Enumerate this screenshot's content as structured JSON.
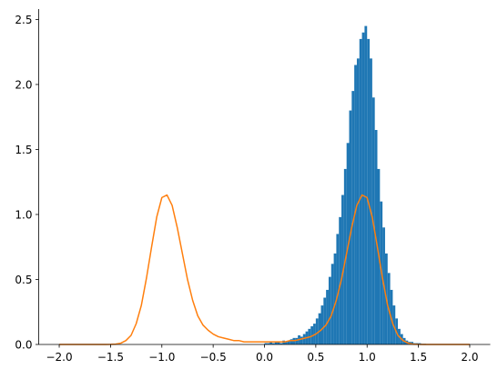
{
  "chart_data": {
    "type": "histogram",
    "xlim": [
      -2.2,
      2.2
    ],
    "ylim": [
      0,
      2.58
    ],
    "xticks": [
      {
        "value": -2,
        "label": "−2.0"
      },
      {
        "value": -1.5,
        "label": "−1.5"
      },
      {
        "value": -1,
        "label": "−1.0"
      },
      {
        "value": -0.5,
        "label": "−0.5"
      },
      {
        "value": 0,
        "label": "0.0"
      },
      {
        "value": 0.5,
        "label": "0.5"
      },
      {
        "value": 1,
        "label": "1.0"
      },
      {
        "value": 1.5,
        "label": "1.5"
      },
      {
        "value": 2,
        "label": "2.0"
      }
    ],
    "yticks": [
      {
        "value": 0,
        "label": "0.0"
      },
      {
        "value": 0.5,
        "label": "0.5"
      },
      {
        "value": 1,
        "label": "1.0"
      },
      {
        "value": 1.5,
        "label": "1.5"
      },
      {
        "value": 2,
        "label": "2.0"
      },
      {
        "value": 2.5,
        "label": "2.5"
      }
    ],
    "series": [
      {
        "type": "histogram",
        "color": "#1f77b4",
        "bins": [
          0,
          0.025,
          0.05,
          0.075,
          0.1,
          0.125,
          0.15,
          0.175,
          0.2,
          0.225,
          0.25,
          0.275,
          0.3,
          0.325,
          0.35,
          0.375,
          0.4,
          0.425,
          0.45,
          0.475,
          0.5,
          0.525,
          0.55,
          0.575,
          0.6,
          0.625,
          0.65,
          0.675,
          0.7,
          0.725,
          0.75,
          0.775,
          0.8,
          0.825,
          0.85,
          0.875,
          0.9,
          0.925,
          0.95,
          0.975,
          1,
          1.025,
          1.05,
          1.075,
          1.1,
          1.125,
          1.15,
          1.175,
          1.2,
          1.225,
          1.25,
          1.275,
          1.3,
          1.325,
          1.35,
          1.375,
          1.4,
          1.425,
          1.45,
          1.475,
          1.5,
          1.525,
          1.55,
          1.575,
          1.6
        ],
        "values": [
          0.01,
          0.01,
          0.02,
          0.01,
          0.02,
          0.02,
          0.01,
          0.03,
          0.02,
          0.03,
          0.04,
          0.05,
          0.05,
          0.07,
          0.06,
          0.08,
          0.1,
          0.12,
          0.14,
          0.16,
          0.2,
          0.24,
          0.3,
          0.36,
          0.42,
          0.52,
          0.62,
          0.7,
          0.85,
          0.98,
          1.15,
          1.35,
          1.55,
          1.8,
          1.95,
          2.15,
          2.2,
          2.35,
          2.4,
          2.45,
          2.35,
          2.2,
          1.9,
          1.65,
          1.35,
          1.1,
          0.9,
          0.7,
          0.55,
          0.42,
          0.3,
          0.2,
          0.12,
          0.08,
          0.05,
          0.03,
          0.02,
          0.02,
          0.01,
          0.01,
          0.01,
          0.005,
          0.005,
          0
        ]
      },
      {
        "type": "line",
        "color": "#ff7f0e",
        "x": [
          -2,
          -1.95,
          -1.9,
          -1.85,
          -1.8,
          -1.75,
          -1.7,
          -1.65,
          -1.6,
          -1.55,
          -1.5,
          -1.45,
          -1.4,
          -1.35,
          -1.3,
          -1.25,
          -1.2,
          -1.15,
          -1.1,
          -1.05,
          -1,
          -0.95,
          -0.9,
          -0.85,
          -0.8,
          -0.75,
          -0.7,
          -0.65,
          -0.6,
          -0.55,
          -0.5,
          -0.45,
          -0.4,
          -0.35,
          -0.3,
          -0.25,
          -0.2,
          -0.15,
          -0.1,
          -0.05,
          0,
          0.05,
          0.1,
          0.15,
          0.2,
          0.25,
          0.3,
          0.35,
          0.4,
          0.45,
          0.5,
          0.55,
          0.6,
          0.65,
          0.7,
          0.75,
          0.8,
          0.85,
          0.9,
          0.95,
          1,
          1.05,
          1.1,
          1.15,
          1.2,
          1.25,
          1.3,
          1.35,
          1.4,
          1.45,
          1.5,
          1.55,
          1.6,
          1.65,
          1.7,
          1.75,
          1.8,
          1.85,
          1.9,
          1.95,
          2
        ],
        "values": [
          0,
          0,
          0,
          0,
          0,
          0,
          0,
          0,
          0,
          0,
          0.001,
          0.003,
          0.01,
          0.03,
          0.07,
          0.16,
          0.3,
          0.51,
          0.75,
          0.98,
          1.13,
          1.15,
          1.07,
          0.9,
          0.7,
          0.5,
          0.34,
          0.22,
          0.15,
          0.11,
          0.08,
          0.06,
          0.05,
          0.04,
          0.03,
          0.03,
          0.02,
          0.02,
          0.02,
          0.02,
          0.02,
          0.02,
          0.02,
          0.02,
          0.02,
          0.03,
          0.03,
          0.04,
          0.05,
          0.06,
          0.08,
          0.11,
          0.15,
          0.22,
          0.34,
          0.5,
          0.7,
          0.9,
          1.07,
          1.15,
          1.13,
          0.98,
          0.75,
          0.51,
          0.3,
          0.16,
          0.07,
          0.03,
          0.01,
          0.003,
          0.001,
          0,
          0,
          0,
          0,
          0,
          0,
          0,
          0,
          0,
          0
        ]
      }
    ]
  }
}
